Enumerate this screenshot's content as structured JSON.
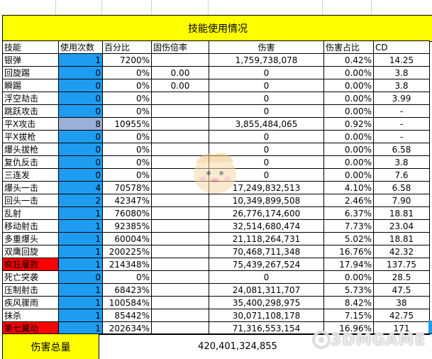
{
  "title": "技能使用情况",
  "headers": [
    "技能",
    "使用次数",
    "百分比",
    "固伤倍率",
    "伤害",
    "伤害占比",
    "CD"
  ],
  "rows": [
    {
      "name": "银弹",
      "count": "1",
      "pct": "7200%",
      "fix": "",
      "dmg": "1,759,738,078",
      "share": "0.42%",
      "cd": "14.25",
      "style": ""
    },
    {
      "name": "回旋踢",
      "count": "0",
      "pct": "0%",
      "fix": "0.00",
      "dmg": "0",
      "share": "0.00%",
      "cd": "3.8",
      "style": ""
    },
    {
      "name": "瞬踢",
      "count": "0",
      "pct": "0%",
      "fix": "0.00",
      "dmg": "0",
      "share": "0.00%",
      "cd": "3.8",
      "style": ""
    },
    {
      "name": "浮空劫击",
      "count": "0",
      "pct": "0%",
      "fix": "",
      "dmg": "0",
      "share": "0.00%",
      "cd": "3.99",
      "style": ""
    },
    {
      "name": "跳跃攻击",
      "count": "0",
      "pct": "0%",
      "fix": "",
      "dmg": "0",
      "share": "0.00%",
      "cd": "-",
      "style": ""
    },
    {
      "name": "平X攻击",
      "count": "8",
      "pct": "10955%",
      "fix": "",
      "dmg": "3,855,484,065",
      "share": "0.92%",
      "cd": "-",
      "style": "sel"
    },
    {
      "name": "平X拔枪",
      "count": "0",
      "pct": "0%",
      "fix": "",
      "dmg": "0",
      "share": "0.00%",
      "cd": "-",
      "style": ""
    },
    {
      "name": "爆头拔枪",
      "count": "0",
      "pct": "0%",
      "fix": "",
      "dmg": "0",
      "share": "0.00%",
      "cd": "6.58",
      "style": ""
    },
    {
      "name": "复仇反击",
      "count": "0",
      "pct": "0%",
      "fix": "",
      "dmg": "0",
      "share": "0.00%",
      "cd": "3.8",
      "style": ""
    },
    {
      "name": "三连发",
      "count": "0",
      "pct": "0%",
      "fix": "",
      "dmg": "0",
      "share": "0.00%",
      "cd": "7.6",
      "style": ""
    },
    {
      "name": "爆头一击",
      "count": "4",
      "pct": "70578%",
      "fix": "",
      "dmg": "17,249,832,513",
      "share": "4.10%",
      "cd": "6.58",
      "style": ""
    },
    {
      "name": "回头一击",
      "count": "2",
      "pct": "42347%",
      "fix": "",
      "dmg": "10,349,899,508",
      "share": "2.46%",
      "cd": "7.90",
      "style": ""
    },
    {
      "name": "乱射",
      "count": "1",
      "pct": "76080%",
      "fix": "",
      "dmg": "26,776,174,600",
      "share": "6.37%",
      "cd": "18.81",
      "style": ""
    },
    {
      "name": "移动射击",
      "count": "1",
      "pct": "92385%",
      "fix": "",
      "dmg": "32,514,680,474",
      "share": "7.73%",
      "cd": "23.04",
      "style": ""
    },
    {
      "name": "多重爆头",
      "count": "1",
      "pct": "60004%",
      "fix": "",
      "dmg": "21,118,264,731",
      "share": "5.02%",
      "cd": "18.81",
      "style": ""
    },
    {
      "name": "双鹰回旋",
      "count": "1",
      "pct": "200225%",
      "fix": "",
      "dmg": "70,468,711,348",
      "share": "16.76%",
      "cd": "42.32",
      "style": ""
    },
    {
      "name": "疯狂屠戮",
      "count": "1",
      "pct": "214348%",
      "fix": "",
      "dmg": "75,439,267,524",
      "share": "17.94%",
      "cd": "137.75",
      "style": "red"
    },
    {
      "name": "死亡突袭",
      "count": "0",
      "pct": "0%",
      "fix": "",
      "dmg": "0",
      "share": "0.00%",
      "cd": "28.5",
      "style": ""
    },
    {
      "name": "压制射击",
      "count": "1",
      "pct": "68423%",
      "fix": "",
      "dmg": "24,081,311,707",
      "share": "5.73%",
      "cd": "47.5",
      "style": ""
    },
    {
      "name": "疾风骤雨",
      "count": "1",
      "pct": "100584%",
      "fix": "",
      "dmg": "35,400,298,975",
      "share": "8.42%",
      "cd": "38",
      "style": ""
    },
    {
      "name": "抹杀",
      "count": "1",
      "pct": "85442%",
      "fix": "",
      "dmg": "30,071,108,178",
      "share": "7.15%",
      "cd": "42.75",
      "style": ""
    },
    {
      "name": "第七翼动",
      "count": "1",
      "pct": "202634%",
      "fix": "",
      "dmg": "71,316,553,154",
      "share": "16.96%",
      "cd": "171",
      "style": "red"
    }
  ],
  "total": {
    "label": "伤害总量",
    "value": "420,401,324,855"
  },
  "watermark": {
    "text": "3DMGAME"
  },
  "colors": {
    "title_bg": "#ffff00",
    "count_bg": "#1e9cf0",
    "highlight_red": "#ff0000",
    "selected": "#9bb0d8"
  }
}
